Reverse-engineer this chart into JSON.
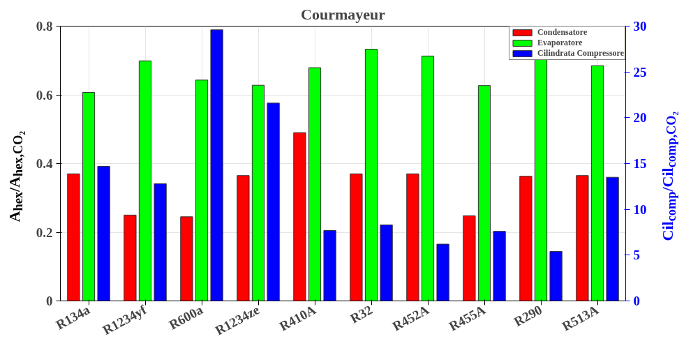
{
  "chart_data": {
    "type": "bar",
    "title": "Courmayeur",
    "categories": [
      "R134a",
      "R1234yf",
      "R600a",
      "R1234ze",
      "R410A",
      "R32",
      "R452A",
      "R455A",
      "R290",
      "R513A"
    ],
    "series": [
      {
        "name": "Condensatore",
        "color": "#ff0000",
        "values": [
          0.37,
          0.25,
          0.245,
          0.365,
          0.49,
          0.37,
          0.37,
          0.248,
          0.363,
          0.365
        ]
      },
      {
        "name": "Evaporatore",
        "color": "#00ff00",
        "values": [
          0.607,
          0.699,
          0.643,
          0.628,
          0.679,
          0.733,
          0.713,
          0.627,
          0.708,
          0.685
        ]
      },
      {
        "name": "Cilindrata Compressore",
        "color": "#0000ff",
        "axis": "y2",
        "values": [
          14.7,
          12.8,
          29.6,
          21.6,
          7.7,
          8.3,
          6.2,
          7.6,
          5.4,
          13.5
        ]
      }
    ],
    "ylabel": "A$_{hex}$/A$_{hex,CO₂}$",
    "y2label": "Cil$_{comp}$/Cil$_{comp,CO₂}$",
    "ylim": [
      0,
      0.8
    ],
    "yticks": [
      0,
      0.2,
      0.4,
      0.6,
      0.8
    ],
    "y2lim": [
      0,
      30
    ],
    "y2ticks": [
      0,
      5,
      10,
      15,
      20,
      25,
      30
    ],
    "grid": true,
    "legend": "top right"
  }
}
